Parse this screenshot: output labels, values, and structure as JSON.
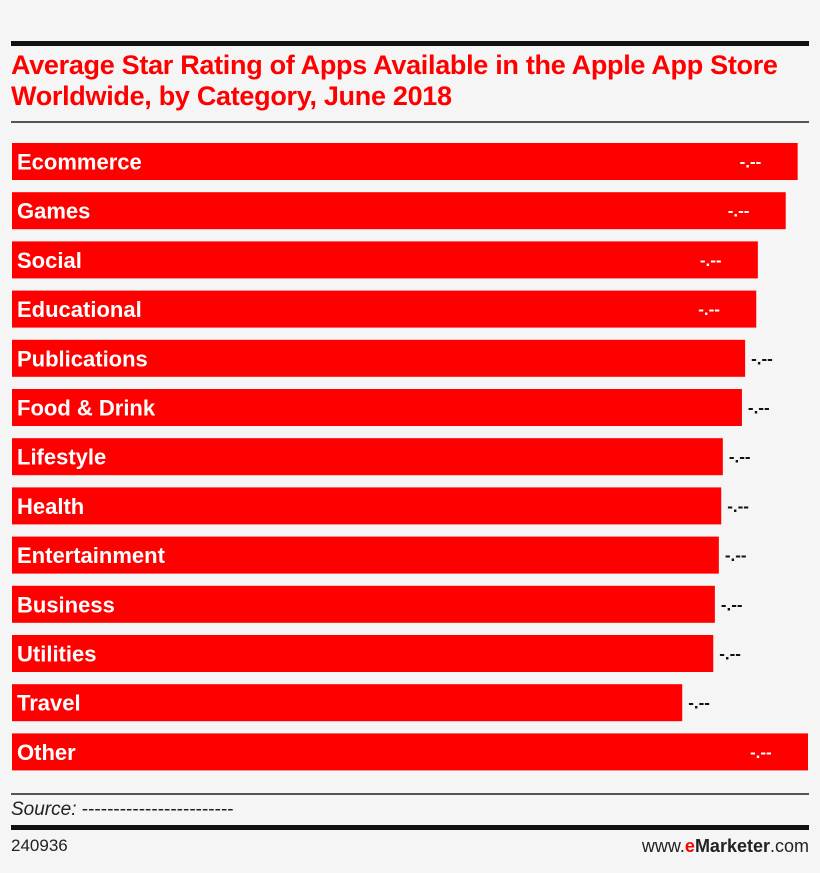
{
  "chart_data": {
    "type": "bar",
    "orientation": "horizontal",
    "title": "Average Star Rating of Apps Available in the Apple App Store Worldwide, by Category, June 2018",
    "categories": [
      "Ecommerce",
      "Games",
      "Social",
      "Educational",
      "Publications",
      "Food & Drink",
      "Lifestyle",
      "Health",
      "Entertainment",
      "Business",
      "Utilities",
      "Travel",
      "Other"
    ],
    "values_relative_to_max": [
      0.987,
      0.972,
      0.937,
      0.935,
      0.921,
      0.917,
      0.893,
      0.891,
      0.888,
      0.883,
      0.881,
      0.842,
      1.0
    ],
    "data_labels": [
      "-.--",
      "-.--",
      "-.--",
      "-.--",
      "-.--",
      "-.--",
      "-.--",
      "-.--",
      "-.--",
      "-.--",
      "-.--",
      "-.--",
      "-.--"
    ],
    "bar_color": "#ff0000",
    "grid": false,
    "legend": "none"
  },
  "footer": {
    "source_label": "Source:",
    "source_value": "------------------------",
    "chart_id": "240936",
    "brand_prefix": "www.",
    "brand_e": "e",
    "brand_name": "Marketer",
    "brand_suffix": ".com"
  }
}
